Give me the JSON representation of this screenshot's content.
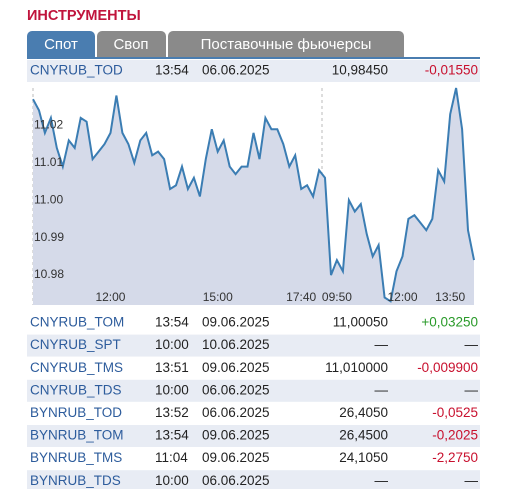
{
  "header": {
    "title": "ИНСТРУМЕНТЫ"
  },
  "tabs": [
    "Спот",
    "Своп",
    "Поставочные фьючерсы"
  ],
  "table": {
    "rows": [
      [
        "CNYRUB_TOD",
        "13:54",
        "06.06.2025",
        "10,98450",
        "-0,01550"
      ],
      [
        "CNYRUB_TOM",
        "13:54",
        "09.06.2025",
        "11,00050",
        "+0,03250"
      ],
      [
        "CNYRUB_SPT",
        "10:00",
        "10.06.2025",
        "—",
        "—"
      ],
      [
        "CNYRUB_TMS",
        "13:51",
        "09.06.2025",
        "11,010000",
        "-0,009900"
      ],
      [
        "CNYRUB_TDS",
        "10:00",
        "06.06.2025",
        "—",
        "—"
      ],
      [
        "BYNRUB_TOD",
        "13:52",
        "06.06.2025",
        "26,4050",
        "-0,0525"
      ],
      [
        "BYNRUB_TOM",
        "13:54",
        "09.06.2025",
        "26,4500",
        "-0,2025"
      ],
      [
        "BYNRUB_TMS",
        "11:04",
        "09.06.2025",
        "24,1050",
        "-2,2750"
      ],
      [
        "BYNRUB_TDS",
        "10:00",
        "06.06.2025",
        "—",
        "—"
      ]
    ]
  },
  "chart_data": {
    "type": "line",
    "color": "#3b7db3",
    "fill": "#d5dae9",
    "values": [
      11.027,
      11.024,
      11.018,
      11.022,
      11.014,
      11.009,
      11.016,
      11.014,
      11.022,
      11.021,
      11.011,
      11.013,
      11.015,
      11.018,
      11.028,
      11.018,
      11.015,
      11.01,
      11.016,
      11.018,
      11.012,
      11.013,
      11.011,
      11.003,
      11.004,
      11.009,
      11.003,
      11.006,
      11.001,
      11.011,
      11.019,
      11.013,
      11.016,
      11.009,
      11.007,
      11.009,
      11.009,
      11.018,
      11.011,
      11.022,
      11.019,
      11.019,
      11.015,
      11.009,
      11.012,
      11.003,
      11.004,
      11.001,
      11.008,
      11.006,
      10.98,
      10.984,
      10.981,
      11.0,
      10.997,
      10.999,
      10.991,
      10.985,
      10.988,
      10.974,
      10.973,
      10.981,
      10.985,
      10.995,
      10.996,
      10.994,
      10.992,
      10.995,
      11.008,
      11.005,
      11.023,
      11.03,
      11.019,
      10.992,
      10.984
    ],
    "xlim": [
      0,
      74
    ],
    "xticks": [
      {
        "value": 13,
        "label": "12:00"
      },
      {
        "value": 31,
        "label": "15:00"
      },
      {
        "value": 45,
        "label": "17:40"
      },
      {
        "value": 51,
        "label": "09:50"
      },
      {
        "value": 62,
        "label": "12:00"
      },
      {
        "value": 70,
        "label": "13:50"
      }
    ],
    "ylim": [
      10.972,
      11.03
    ],
    "yticks": [
      10.98,
      10.99,
      {
        "value": 11,
        "label": "11.00"
      },
      11.01,
      11.02
    ]
  }
}
